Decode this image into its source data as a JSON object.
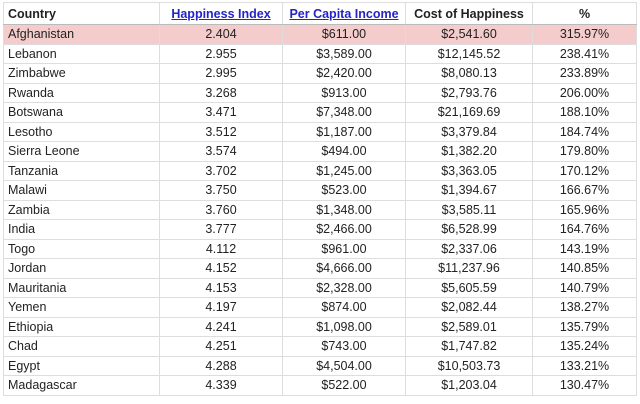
{
  "table": {
    "header": [
      "Country",
      "Happiness Index",
      "Per Capita Income",
      "Cost of Happiness",
      "%"
    ],
    "rows": [
      [
        "Afghanistan",
        "2.404",
        "$611.00",
        "$2,541.60",
        "315.97%"
      ],
      [
        "Lebanon",
        "2.955",
        "$3,589.00",
        "$12,145.52",
        "238.41%"
      ],
      [
        "Zimbabwe",
        "2.995",
        "$2,420.00",
        "$8,080.13",
        "233.89%"
      ],
      [
        "Rwanda",
        "3.268",
        "$913.00",
        "$2,793.76",
        "206.00%"
      ],
      [
        "Botswana",
        "3.471",
        "$7,348.00",
        "$21,169.69",
        "188.10%"
      ],
      [
        "Lesotho",
        "3.512",
        "$1,187.00",
        "$3,379.84",
        "184.74%"
      ],
      [
        "Sierra Leone",
        "3.574",
        "$494.00",
        "$1,382.20",
        "179.80%"
      ],
      [
        "Tanzania",
        "3.702",
        "$1,245.00",
        "$3,363.05",
        "170.12%"
      ],
      [
        "Malawi",
        "3.750",
        "$523.00",
        "$1,394.67",
        "166.67%"
      ],
      [
        "Zambia",
        "3.760",
        "$1,348.00",
        "$3,585.11",
        "165.96%"
      ],
      [
        "India",
        "3.777",
        "$2,466.00",
        "$6,528.99",
        "164.76%"
      ],
      [
        "Togo",
        "4.112",
        "$961.00",
        "$2,337.06",
        "143.19%"
      ],
      [
        "Jordan",
        "4.152",
        "$4,666.00",
        "$11,237.96",
        "140.85%"
      ],
      [
        "Mauritania",
        "4.153",
        "$2,328.00",
        "$5,605.59",
        "140.79%"
      ],
      [
        "Yemen",
        "4.197",
        "$874.00",
        "$2,082.44",
        "138.27%"
      ],
      [
        "Ethiopia",
        "4.241",
        "$1,098.00",
        "$2,589.01",
        "135.79%"
      ],
      [
        "Chad",
        "4.251",
        "$743.00",
        "$1,747.82",
        "135.24%"
      ],
      [
        "Egypt",
        "4.288",
        "$4,504.00",
        "$10,503.73",
        "133.21%"
      ],
      [
        "Madagascar",
        "4.339",
        "$522.00",
        "$1,203.04",
        "130.47%"
      ]
    ]
  }
}
